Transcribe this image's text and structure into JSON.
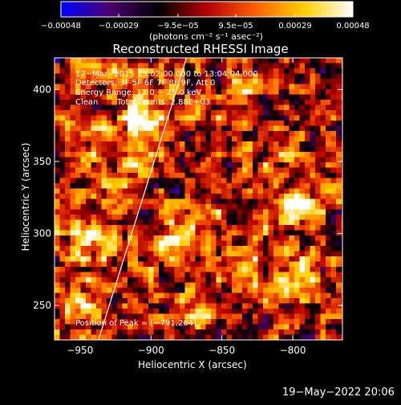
{
  "chart_data": {
    "type": "heatmap",
    "title": "Reconstructed RHESSI Image",
    "xlabel": "Heliocentric X (arcsec)",
    "ylabel": "Heliocentric Y (arcsec)",
    "xlim": [
      -968,
      -765
    ],
    "ylim": [
      226,
      422
    ],
    "x_ticks": [
      {
        "value": -950,
        "label": "−950"
      },
      {
        "value": -900,
        "label": "−900"
      },
      {
        "value": -850,
        "label": "−850"
      },
      {
        "value": -800,
        "label": "−800"
      }
    ],
    "y_ticks": [
      {
        "value": 250,
        "label": "250"
      },
      {
        "value": 300,
        "label": "300"
      },
      {
        "value": 350,
        "label": "350"
      },
      {
        "value": 400,
        "label": "400"
      }
    ],
    "colorbar": {
      "range": [
        -0.00048,
        0.00048
      ],
      "ticks": [
        {
          "value": -0.00048,
          "label": "−0.00048"
        },
        {
          "value": -0.00029,
          "label": "−0.00029"
        },
        {
          "value": -9.5e-05,
          "label": "−9.5e−05"
        },
        {
          "value": 9.5e-05,
          "label": "9.5e−05"
        },
        {
          "value": 0.00029,
          "label": "0.00029"
        },
        {
          "value": 0.00048,
          "label": "0.00048"
        }
      ],
      "stops": [
        "#0000ff",
        "#4a0070",
        "#000000",
        "#b40000",
        "#ff6000",
        "#ffd000",
        "#ffffff"
      ]
    },
    "units": "(photons cm⁻² s⁻¹ asec⁻²)",
    "limb_line": {
      "x": [
        -937,
        -875
      ],
      "y": [
        226,
        422
      ]
    },
    "peak": {
      "x": -791,
      "y": 264
    },
    "hotspots": [
      {
        "x": -905,
        "y": 380,
        "v": 0.00048
      },
      {
        "x": -912,
        "y": 350,
        "v": 0.0004
      },
      {
        "x": -942,
        "y": 298,
        "v": 0.00042
      },
      {
        "x": -892,
        "y": 292,
        "v": 0.00036
      },
      {
        "x": -800,
        "y": 318,
        "v": 0.00044
      },
      {
        "x": -795,
        "y": 268,
        "v": 0.00046
      },
      {
        "x": -870,
        "y": 305,
        "v": 0.00038
      },
      {
        "x": -952,
        "y": 250,
        "v": 0.0003
      },
      {
        "x": -866,
        "y": 248,
        "v": 0.0003
      },
      {
        "x": -838,
        "y": 272,
        "v": 0.00034
      },
      {
        "x": -815,
        "y": 355,
        "v": 0.00028
      },
      {
        "x": -840,
        "y": 395,
        "v": 0.00025
      }
    ]
  },
  "annotations": {
    "time_range": "17−Mar−2015 13:02:00.000 to 13:04:04.000",
    "detectors": "Detectors: 3F 5F 6F 7F 8F 9F, Att 0",
    "energy": "Energy Range: 12.0 − 25.0 keV",
    "clean": "Clean",
    "total_counts": "Total counts: 2.88E+03",
    "peak_label": "Position of Peak = [−791,264]"
  },
  "footer_date": "19−May−2022 20:06"
}
